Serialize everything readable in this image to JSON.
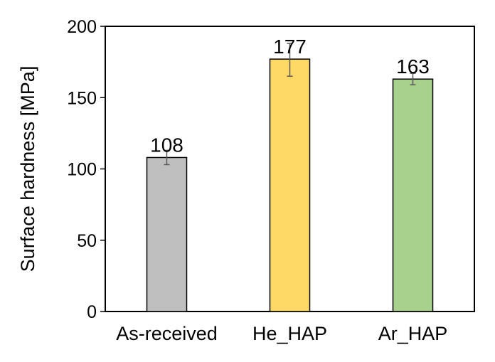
{
  "chart_data": {
    "type": "bar",
    "title": "",
    "xlabel": "",
    "ylabel": "Surface hardness [MPa]",
    "ylim": [
      0,
      200
    ],
    "yticks": [
      0,
      50,
      100,
      150,
      200
    ],
    "grid": false,
    "legend": "none",
    "categories": [
      "As-received",
      "He_HAP",
      "Ar_HAP"
    ],
    "values": [
      108,
      177,
      163
    ],
    "value_labels": [
      "108",
      "177",
      "163"
    ],
    "error_low": [
      103,
      165,
      159
    ],
    "error_high": [
      113,
      188,
      167
    ],
    "bar_colors": [
      "#bfbfbf",
      "#ffd966",
      "#a9d18e"
    ],
    "bar_edge_color": "#000000",
    "error_bar_color": "#595959"
  }
}
